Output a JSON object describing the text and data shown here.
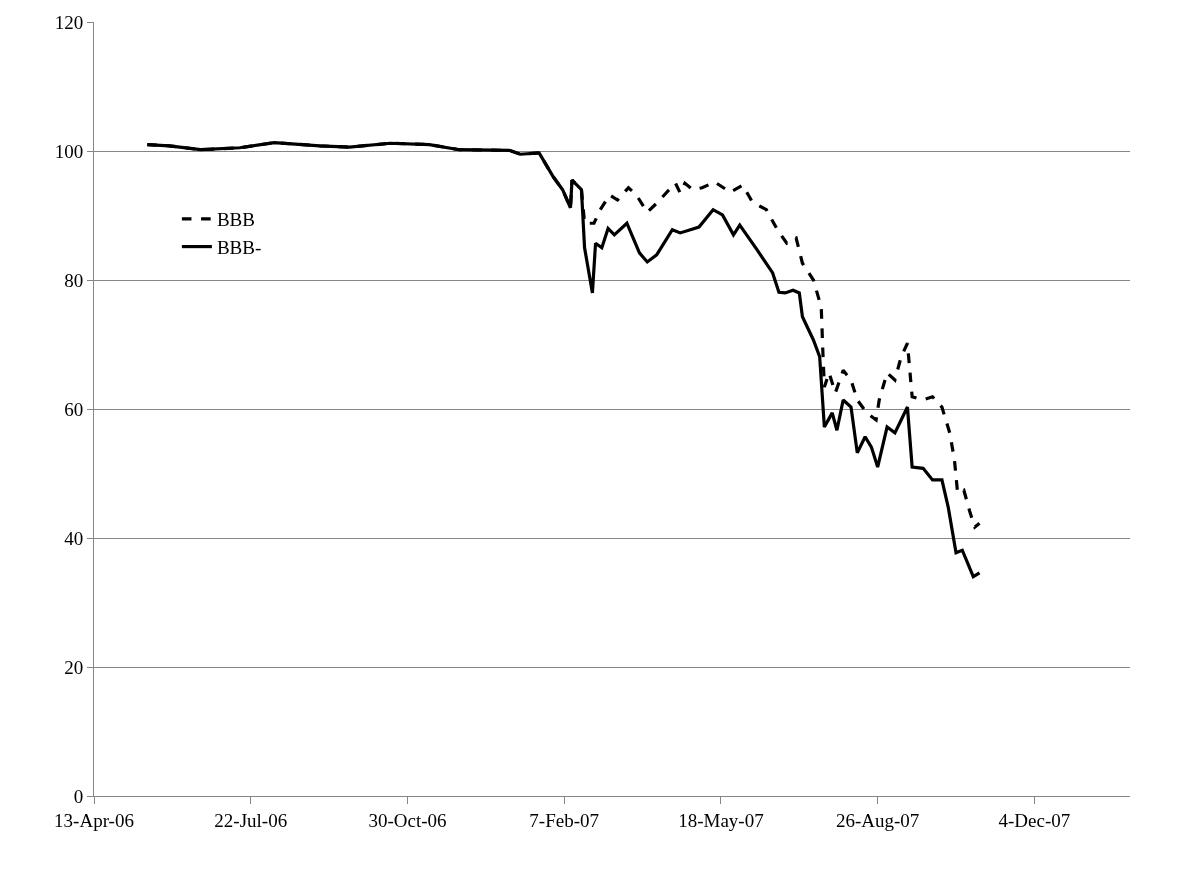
{
  "chart_data": {
    "type": "line",
    "xlim": [
      "2006-04-13",
      "2008-02-03"
    ],
    "xticks": [
      {
        "value": "2006-04-13",
        "label": "13-Apr-06"
      },
      {
        "value": "2006-07-22",
        "label": "22-Jul-06"
      },
      {
        "value": "2006-10-30",
        "label": "30-Oct-06"
      },
      {
        "value": "2007-02-07",
        "label": "7-Feb-07"
      },
      {
        "value": "2007-05-18",
        "label": "18-May-07"
      },
      {
        "value": "2007-08-26",
        "label": "26-Aug-07"
      },
      {
        "value": "2007-12-04",
        "label": "4-Dec-07"
      }
    ],
    "ylim": [
      0,
      120
    ],
    "yticks": [
      0,
      20,
      40,
      60,
      80,
      100,
      120
    ],
    "grid": "y",
    "legend": "top left",
    "marker": "none",
    "series": [
      {
        "name": "BBB",
        "color": "#000000",
        "line_style": "dashed",
        "x": [
          "2006-05-17",
          "2006-05-31",
          "2006-06-20",
          "2006-07-15",
          "2006-08-06",
          "2006-09-04",
          "2006-09-23",
          "2006-10-19",
          "2006-11-13",
          "2006-12-02",
          "2007-01-03",
          "2007-01-10",
          "2007-01-22",
          "2007-01-31",
          "2007-02-06",
          "2007-02-11",
          "2007-02-12",
          "2007-02-18",
          "2007-02-20",
          "2007-02-26",
          "2007-03-02",
          "2007-03-08",
          "2007-03-13",
          "2007-03-20",
          "2007-03-25",
          "2007-04-01",
          "2007-04-07",
          "2007-04-15",
          "2007-04-19",
          "2007-04-22",
          "2007-04-25",
          "2007-04-30",
          "2007-05-06",
          "2007-05-14",
          "2007-05-24",
          "2007-06-01",
          "2007-06-07",
          "2007-06-16",
          "2007-06-23",
          "2007-06-29",
          "2007-07-05",
          "2007-07-09",
          "2007-07-16",
          "2007-07-21",
          "2007-07-22",
          "2007-07-23",
          "2007-07-26",
          "2007-07-30",
          "2007-08-04",
          "2007-08-09",
          "2007-08-13",
          "2007-08-19",
          "2007-08-25",
          "2007-08-27",
          "2007-09-01",
          "2007-09-06",
          "2007-09-10",
          "2007-09-14",
          "2007-09-17",
          "2007-09-24",
          "2007-09-30",
          "2007-10-06",
          "2007-10-11",
          "2007-10-14",
          "2007-10-16",
          "2007-10-20",
          "2007-10-24",
          "2007-10-27",
          "2007-10-30"
        ],
        "values": [
          101,
          100.8,
          100.2,
          100.5,
          101.3,
          100.8,
          100.6,
          101.2,
          101,
          100.2,
          100.1,
          99.5,
          99.7,
          96,
          94,
          91.2,
          95.5,
          94,
          88.8,
          88.8,
          90.9,
          93.2,
          92.4,
          94.3,
          93.2,
          90.5,
          91.9,
          94,
          95,
          93.5,
          95,
          94,
          94.3,
          95.2,
          93.6,
          94.7,
          92.1,
          90.9,
          87.8,
          85.7,
          86.5,
          82.6,
          80,
          75.8,
          69.1,
          63.4,
          65.6,
          62.5,
          66,
          64.5,
          61.4,
          59.4,
          58.3,
          61.4,
          65.6,
          64.5,
          68.1,
          70.2,
          61.9,
          61.4,
          61.9,
          60.3,
          56.3,
          52.1,
          47,
          47.4,
          43.9,
          41.7,
          42.3
        ]
      },
      {
        "name": "BBB-",
        "color": "#000000",
        "line_style": "solid",
        "x": [
          "2006-05-17",
          "2006-05-31",
          "2006-06-20",
          "2006-07-15",
          "2006-08-06",
          "2006-09-04",
          "2006-09-23",
          "2006-10-19",
          "2006-11-13",
          "2006-12-02",
          "2007-01-03",
          "2007-01-10",
          "2007-01-22",
          "2007-01-31",
          "2007-02-06",
          "2007-02-11",
          "2007-02-12",
          "2007-02-18",
          "2007-02-20",
          "2007-02-25",
          "2007-02-27",
          "2007-03-03",
          "2007-03-07",
          "2007-03-11",
          "2007-03-19",
          "2007-03-27",
          "2007-04-01",
          "2007-04-07",
          "2007-04-17",
          "2007-04-22",
          "2007-05-04",
          "2007-05-13",
          "2007-05-19",
          "2007-05-26",
          "2007-05-30",
          "2007-06-10",
          "2007-06-20",
          "2007-06-24",
          "2007-06-28",
          "2007-07-03",
          "2007-07-07",
          "2007-07-09",
          "2007-07-16",
          "2007-07-20",
          "2007-07-23",
          "2007-07-28",
          "2007-07-31",
          "2007-08-04",
          "2007-08-09",
          "2007-08-13",
          "2007-08-18",
          "2007-08-22",
          "2007-08-26",
          "2007-09-01",
          "2007-09-06",
          "2007-09-11",
          "2007-09-14",
          "2007-09-17",
          "2007-09-24",
          "2007-09-30",
          "2007-10-06",
          "2007-10-10",
          "2007-10-15",
          "2007-10-19",
          "2007-10-26",
          "2007-10-30"
        ],
        "values": [
          101,
          100.8,
          100.2,
          100.5,
          101.3,
          100.8,
          100.6,
          101.2,
          101,
          100.2,
          100.1,
          99.5,
          99.7,
          96,
          94,
          91.2,
          95.5,
          94,
          85,
          78,
          85.7,
          85,
          88,
          87,
          88.8,
          84.2,
          82.8,
          83.9,
          87.8,
          87.3,
          88.2,
          90.9,
          90.1,
          87,
          88.5,
          84.7,
          81.1,
          78.1,
          78,
          78.4,
          78,
          74.3,
          70.7,
          68.1,
          57.2,
          59.4,
          56.7,
          61.4,
          60.3,
          53.2,
          55.7,
          54.1,
          51,
          57.2,
          56.3,
          58.8,
          60.3,
          51,
          50.8,
          49,
          49,
          44.8,
          37.7,
          38.1,
          34,
          34.6
        ]
      }
    ]
  }
}
